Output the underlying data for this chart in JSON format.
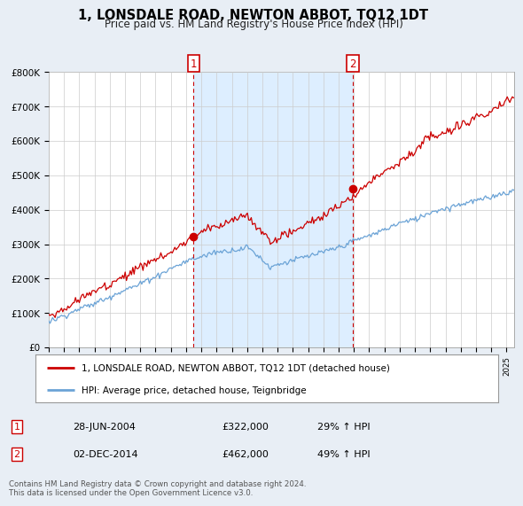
{
  "title": "1, LONSDALE ROAD, NEWTON ABBOT, TQ12 1DT",
  "subtitle": "Price paid vs. HM Land Registry's House Price Index (HPI)",
  "ylabel_ticks": [
    "£0",
    "£100K",
    "£200K",
    "£300K",
    "£400K",
    "£500K",
    "£600K",
    "£700K",
    "£800K"
  ],
  "ylim": [
    0,
    800000
  ],
  "xlim_start": 1995.0,
  "xlim_end": 2025.5,
  "hpi_color": "#6ba3d6",
  "price_color": "#cc0000",
  "shade_color": "#ddeeff",
  "sale1": {
    "date_num": 2004.49,
    "price": 322000,
    "label": "1"
  },
  "sale2": {
    "date_num": 2014.92,
    "price": 462000,
    "label": "2"
  },
  "legend_line1": "1, LONSDALE ROAD, NEWTON ABBOT, TQ12 1DT (detached house)",
  "legend_line2": "HPI: Average price, detached house, Teignbridge",
  "table_row1": [
    "1",
    "28-JUN-2004",
    "£322,000",
    "29% ↑ HPI"
  ],
  "table_row2": [
    "2",
    "02-DEC-2014",
    "£462,000",
    "49% ↑ HPI"
  ],
  "footnote": "Contains HM Land Registry data © Crown copyright and database right 2024.\nThis data is licensed under the Open Government Licence v3.0.",
  "background_color": "#e8eef5",
  "plot_bg_color": "#ffffff"
}
